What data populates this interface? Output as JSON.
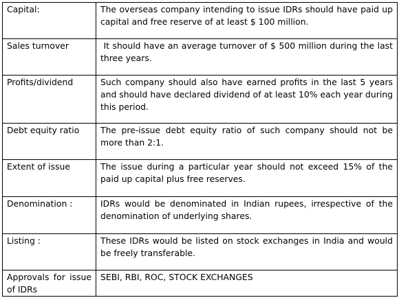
{
  "rows": [
    {
      "label": "Capital:",
      "text": "The overseas company intending to issue IDRs should have paid up capital and free reserve of at least $ 100 million."
    },
    {
      "label": "Sales turnover",
      "text": " It should have an average turnover of $ 500 million during the last three years."
    },
    {
      "label": "Profits/dividend",
      "text": "Such company should also have earned profits in the last 5 years and should have declared dividend of at least 10% each year during this period."
    },
    {
      "label": "Debt equity ratio",
      "text": "The pre-issue debt equity ratio of such company should not be more than 2:1."
    },
    {
      "label": "Extent of issue",
      "text": "The issue during a particular year should not exceed 15% of the paid up capital plus free reserves."
    },
    {
      "label": "Denomination :",
      "text": "IDRs would be denominated in Indian rupees, irrespective of the denomination of underlying shares."
    },
    {
      "label": "Listing :",
      "text": "These IDRs would be listed on stock exchanges in India and would be freely transferable."
    },
    {
      "label": "Approvals for issue of IDRs",
      "text": "SEBI, RBI, ROC, STOCK EXCHANGES"
    }
  ]
}
